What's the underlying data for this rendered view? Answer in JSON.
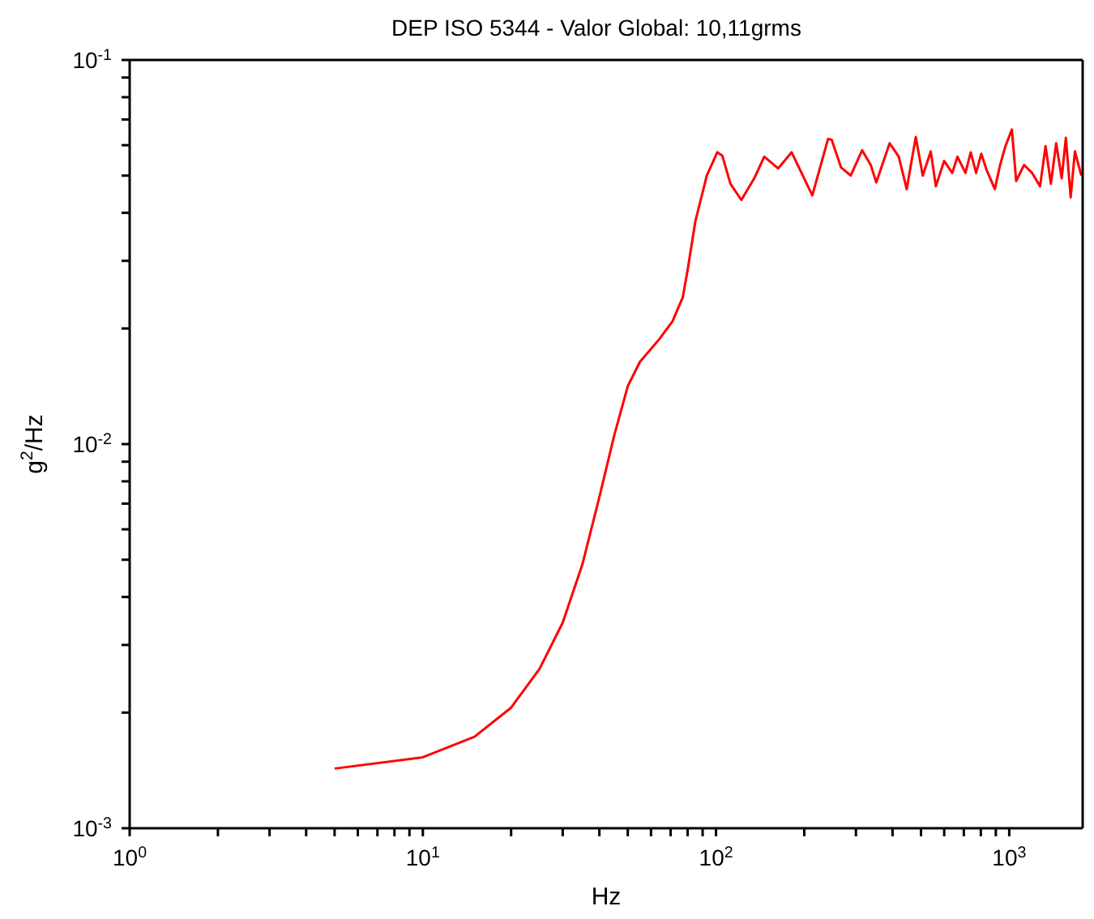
{
  "chart_data": {
    "type": "line",
    "title": "DEP ISO 5344 - Valor Global: 10,11grms",
    "xlabel": "Hz",
    "ylabel": "g$^{2}$/Hz",
    "log": "xy",
    "marker": "none",
    "line_style": "solid",
    "xlim": [
      1,
      1780
    ],
    "ylim": [
      0.001,
      0.1
    ],
    "xticks": [
      {
        "value": 1,
        "label": "10$^{0}$"
      },
      {
        "value": 2,
        "label": null
      },
      {
        "value": 3,
        "label": null
      },
      {
        "value": 4,
        "label": null
      },
      {
        "value": 5,
        "label": null
      },
      {
        "value": 6,
        "label": null
      },
      {
        "value": 7,
        "label": null
      },
      {
        "value": 8,
        "label": null
      },
      {
        "value": 9,
        "label": null
      },
      {
        "value": 10,
        "label": "10$^{1}$"
      },
      {
        "value": 20,
        "label": null
      },
      {
        "value": 30,
        "label": null
      },
      {
        "value": 40,
        "label": null
      },
      {
        "value": 50,
        "label": null
      },
      {
        "value": 60,
        "label": null
      },
      {
        "value": 70,
        "label": null
      },
      {
        "value": 80,
        "label": null
      },
      {
        "value": 90,
        "label": null
      },
      {
        "value": 100,
        "label": "10$^{2}$"
      },
      {
        "value": 200,
        "label": null
      },
      {
        "value": 300,
        "label": null
      },
      {
        "value": 400,
        "label": null
      },
      {
        "value": 500,
        "label": null
      },
      {
        "value": 600,
        "label": null
      },
      {
        "value": 700,
        "label": null
      },
      {
        "value": 800,
        "label": null
      },
      {
        "value": 900,
        "label": null
      },
      {
        "value": 1000,
        "label": "10$^{3}$"
      }
    ],
    "yticks": [
      {
        "value": 0.001,
        "label": "10$^{-3}$"
      },
      {
        "value": 0.002,
        "label": null
      },
      {
        "value": 0.003,
        "label": null
      },
      {
        "value": 0.004,
        "label": null
      },
      {
        "value": 0.005,
        "label": null
      },
      {
        "value": 0.006,
        "label": null
      },
      {
        "value": 0.007,
        "label": null
      },
      {
        "value": 0.008,
        "label": null
      },
      {
        "value": 0.009,
        "label": null
      },
      {
        "value": 0.01,
        "label": "10$^{-2}$"
      },
      {
        "value": 0.02,
        "label": null
      },
      {
        "value": 0.03,
        "label": null
      },
      {
        "value": 0.04,
        "label": null
      },
      {
        "value": 0.05,
        "label": null
      },
      {
        "value": 0.06,
        "label": null
      },
      {
        "value": 0.07,
        "label": null
      },
      {
        "value": 0.08,
        "label": null
      },
      {
        "value": 0.09,
        "label": null
      },
      {
        "value": 0.1,
        "label": "10$^{-1}$"
      }
    ],
    "series": [
      {
        "color": "#ff0000",
        "x": [
          5,
          10,
          15,
          20,
          25,
          30,
          35,
          40,
          45,
          50,
          55,
          64,
          71,
          77,
          80,
          85,
          93,
          101,
          105,
          112,
          122,
          135,
          146,
          163,
          181,
          213,
          241,
          248,
          267,
          288,
          315,
          337,
          352,
          391,
          420,
          447,
          480,
          507,
          540,
          562,
          600,
          639,
          666,
          709,
          739,
          771,
          803,
          838,
          893,
          931,
          971,
          1021,
          1056,
          1124,
          1197,
          1274,
          1330,
          1387,
          1446,
          1510,
          1560,
          1620,
          1675,
          1762
        ],
        "values": [
          0.00143,
          0.00153,
          0.00173,
          0.00206,
          0.0026,
          0.00343,
          0.00486,
          0.00728,
          0.01057,
          0.01415,
          0.01637,
          0.01875,
          0.02086,
          0.0241,
          0.0284,
          0.038,
          0.05,
          0.0575,
          0.0564,
          0.0476,
          0.0432,
          0.0492,
          0.056,
          0.0522,
          0.0575,
          0.0444,
          0.0623,
          0.062,
          0.0525,
          0.05,
          0.0582,
          0.0533,
          0.048,
          0.0607,
          0.056,
          0.0461,
          0.063,
          0.05,
          0.0578,
          0.0469,
          0.0546,
          0.0508,
          0.056,
          0.0508,
          0.0575,
          0.0508,
          0.057,
          0.0516,
          0.0461,
          0.0533,
          0.0597,
          0.0659,
          0.0484,
          0.0533,
          0.0508,
          0.0469,
          0.0597,
          0.0476,
          0.0607,
          0.0492,
          0.0627,
          0.0439,
          0.0578,
          0.05
        ]
      }
    ]
  }
}
